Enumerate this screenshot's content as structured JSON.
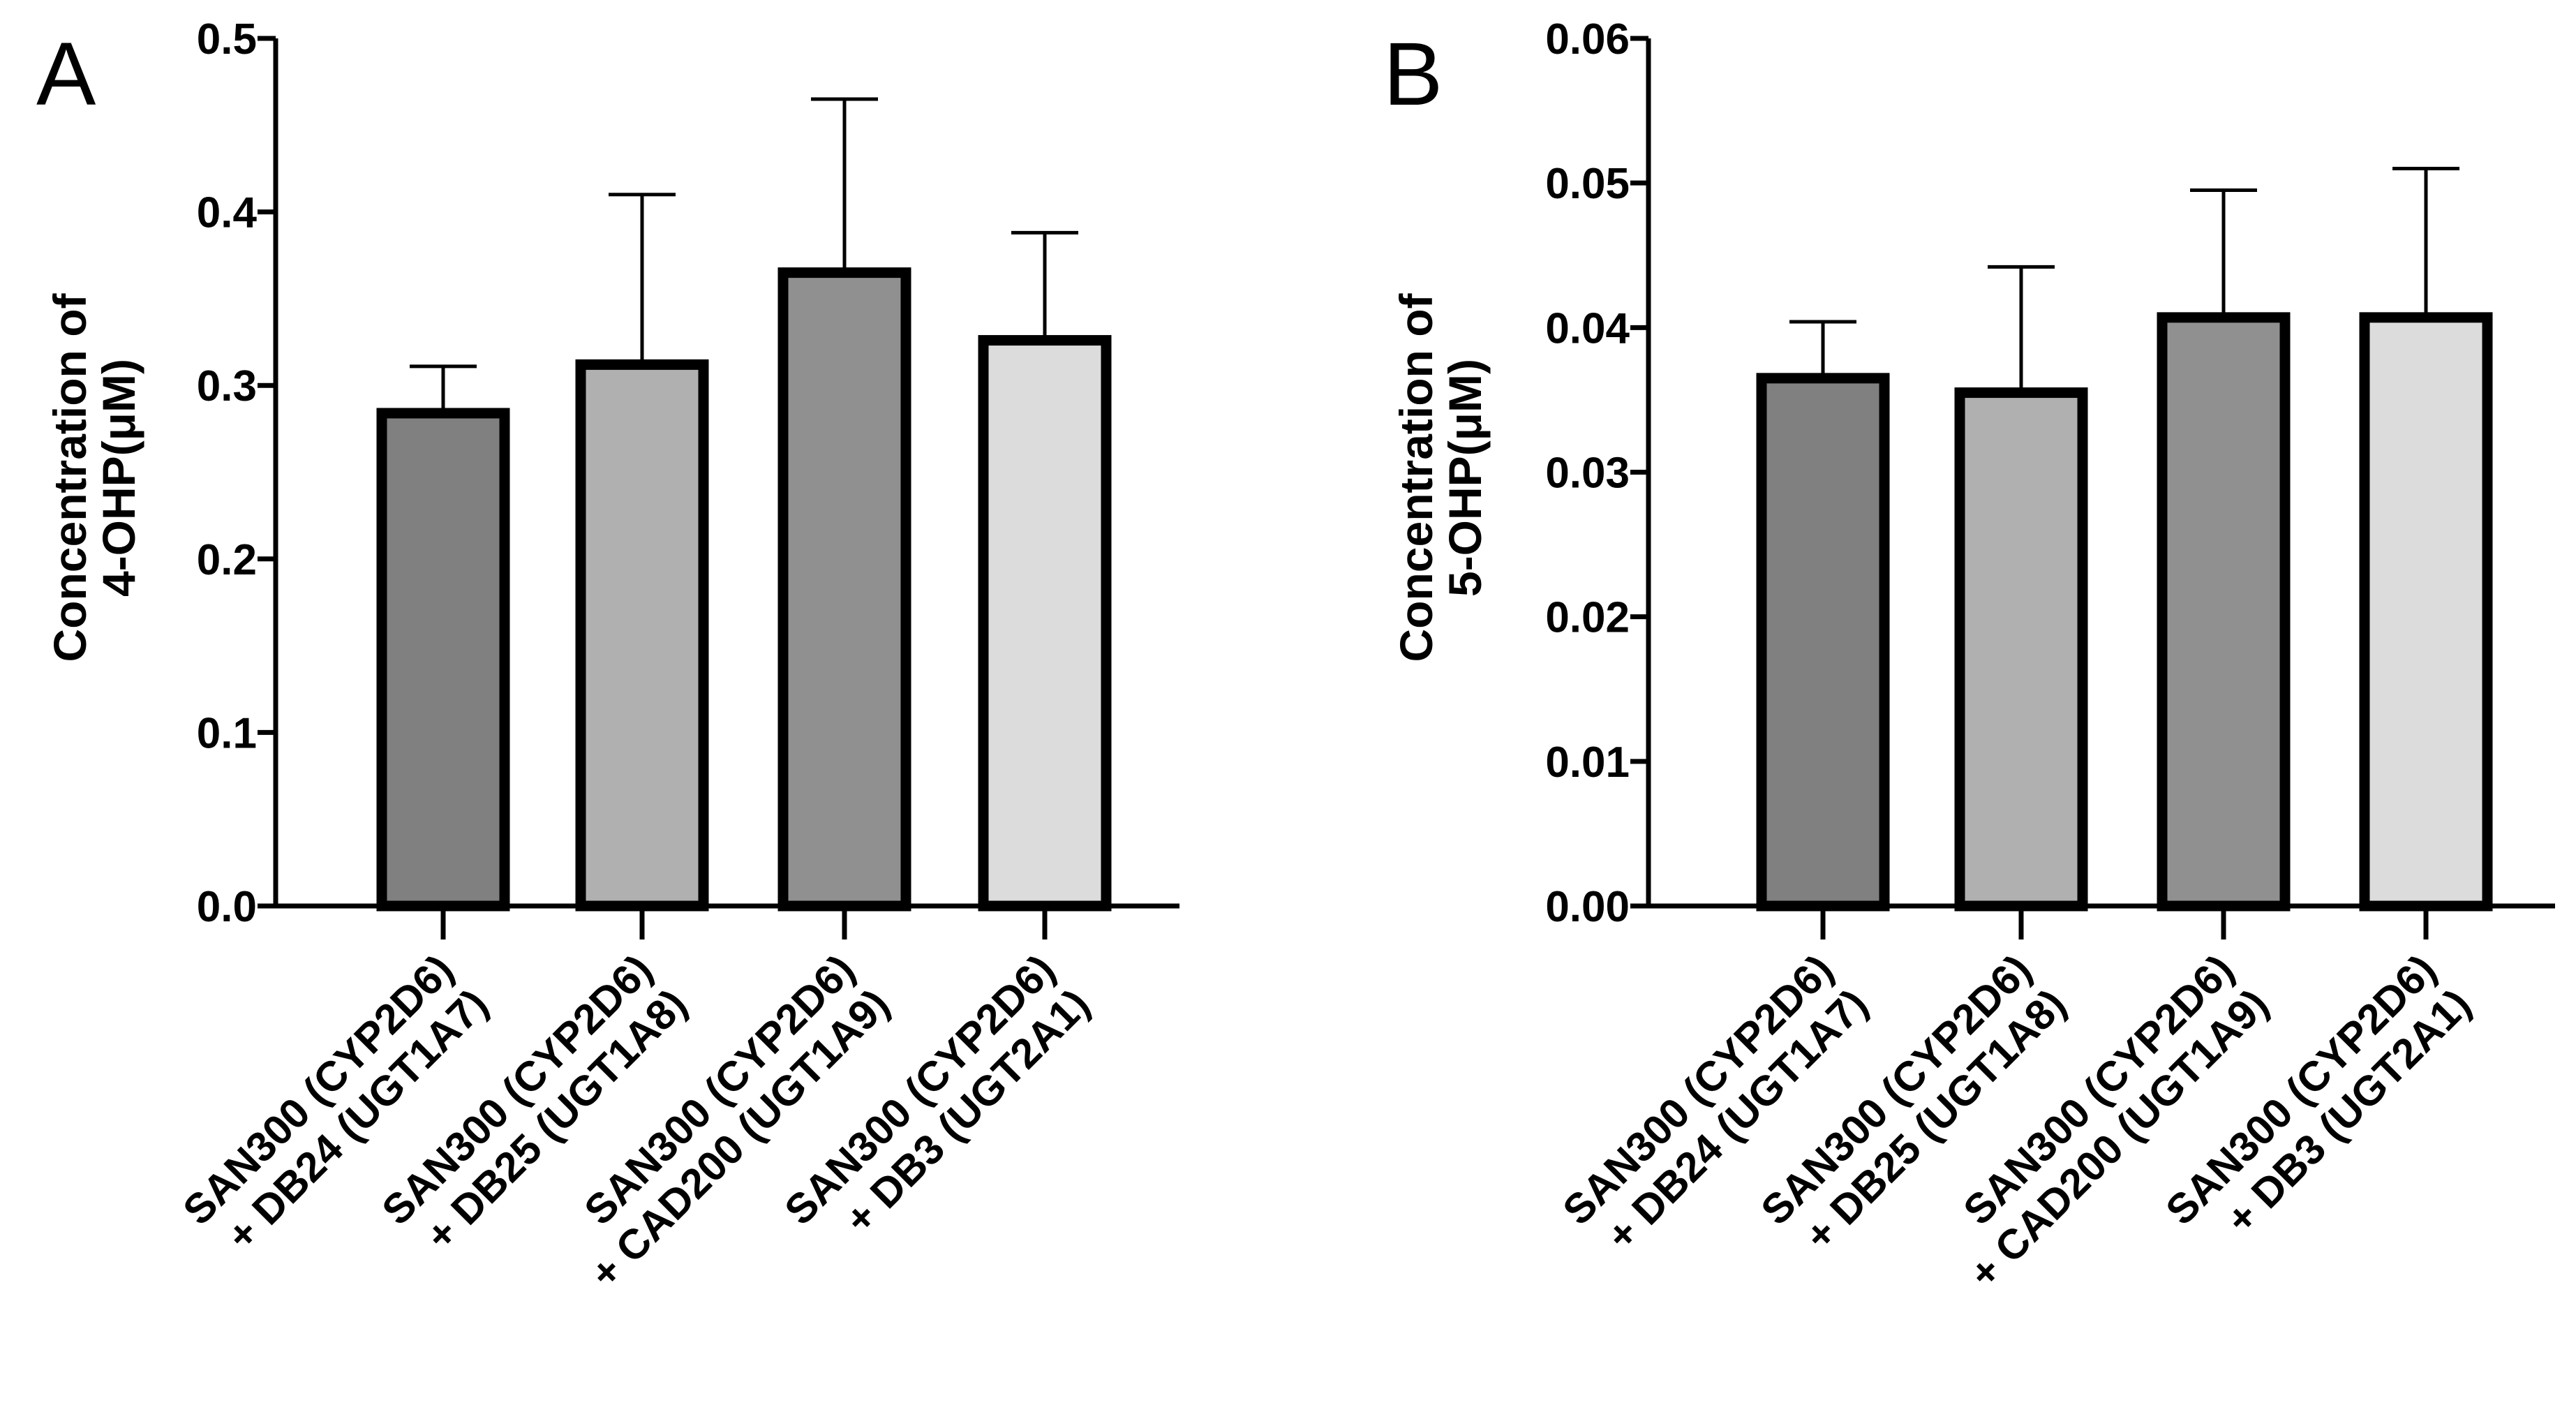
{
  "chart_data": [
    {
      "type": "bar",
      "panel": "A",
      "title": "",
      "xlabel": "",
      "ylabel_lines": [
        "Concentration of",
        "4-OHP(μM)"
      ],
      "ylim": [
        0,
        0.5
      ],
      "yticks": [
        0.0,
        0.1,
        0.2,
        0.3,
        0.4,
        0.5
      ],
      "ytick_labels": [
        "0.0",
        "0.1",
        "0.2",
        "0.3",
        "0.4",
        "0.5"
      ],
      "grid": false,
      "categories": [
        [
          "SAN300 (CYP2D6)",
          "+ DB24 (UGT1A7)"
        ],
        [
          "SAN300 (CYP2D6)",
          "+ DB25 (UGT1A8)"
        ],
        [
          "SAN300 (CYP2D6)",
          "+ CAD200 (UGT1A9)"
        ],
        [
          "SAN300 (CYP2D6)",
          "+ DB3 (UGT2A1)"
        ]
      ],
      "values": [
        0.284,
        0.312,
        0.365,
        0.326
      ],
      "error_upper": [
        0.027,
        0.098,
        0.1,
        0.062
      ],
      "bar_colors": [
        "#808080",
        "#b0b0b0",
        "#909090",
        "#dcdcdc"
      ]
    },
    {
      "type": "bar",
      "panel": "B",
      "title": "",
      "xlabel": "",
      "ylabel_lines": [
        "Concentration of",
        "5-OHP(μM)"
      ],
      "ylim": [
        0,
        0.06
      ],
      "yticks": [
        0.0,
        0.01,
        0.02,
        0.03,
        0.04,
        0.05,
        0.06
      ],
      "ytick_labels": [
        "0.00",
        "0.01",
        "0.02",
        "0.03",
        "0.04",
        "0.05",
        "0.06"
      ],
      "grid": false,
      "categories": [
        [
          "SAN300 (CYP2D6)",
          "+ DB24 (UGT1A7)"
        ],
        [
          "SAN300 (CYP2D6)",
          "+ DB25 (UGT1A8)"
        ],
        [
          "SAN300 (CYP2D6)",
          "+ CAD200 (UGT1A9)"
        ],
        [
          "SAN300 (CYP2D6)",
          "+ DB3 (UGT2A1)"
        ]
      ],
      "values": [
        0.0365,
        0.0355,
        0.0407,
        0.0407
      ],
      "error_upper": [
        0.0039,
        0.0087,
        0.0088,
        0.0103
      ],
      "bar_colors": [
        "#808080",
        "#b0b0b0",
        "#909090",
        "#dcdcdc"
      ]
    }
  ]
}
